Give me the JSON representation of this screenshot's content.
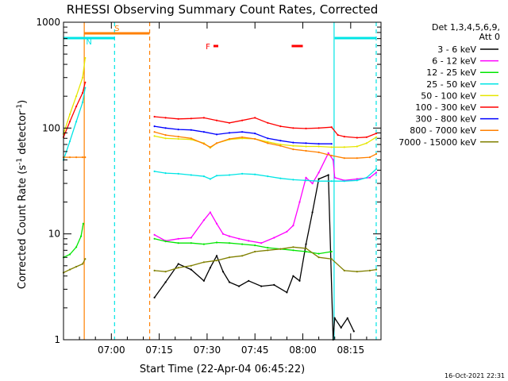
{
  "chart_data": {
    "type": "line",
    "title": "RHESSI Observing Summary Count Rates, Corrected",
    "xlabel": "Start Time (22-Apr-04 06:45:22)",
    "ylabel": "Corrected Count Rate (s",
    "ylabel_sup": "-1",
    "ylabel_tail": " detector",
    "ylabel_sup2": "-1",
    "ylabel_end": ")",
    "x_range_minutes": [
      0,
      99.5
    ],
    "ylim": [
      1,
      1000
    ],
    "yscale": "log",
    "x_ticks": [
      {
        "t": 15,
        "label": "07:00"
      },
      {
        "t": 30,
        "label": "07:15"
      },
      {
        "t": 45,
        "label": "07:30"
      },
      {
        "t": 60,
        "label": "07:45"
      },
      {
        "t": 75,
        "label": "08:00"
      },
      {
        "t": 90,
        "label": "08:15"
      }
    ],
    "y_ticks": [
      {
        "v": 1,
        "label": "1"
      },
      {
        "v": 10,
        "label": "10"
      },
      {
        "v": 100,
        "label": "100"
      },
      {
        "v": 1000,
        "label": "1000"
      }
    ],
    "legend_header": [
      "Det 1,3,4,5,6,9,",
      "Att 0"
    ],
    "legend_placement": "right",
    "timestamp": "16-Oct-2021 22:31",
    "flags": [
      {
        "label": "S",
        "start": 6.5,
        "end": 27.0,
        "color": "#ff8000",
        "level": 0.965
      },
      {
        "label": "N",
        "start": 0.0,
        "end": 16.0,
        "color": "#00e5e5",
        "level": 0.95
      },
      {
        "label": "",
        "start": 85.0,
        "end": 98.0,
        "color": "#00e5e5",
        "level": 0.95
      },
      {
        "label": "F",
        "start": 47.0,
        "end": 48.5,
        "color": "#ff0000",
        "level": 0.925
      },
      {
        "label": "",
        "start": 71.5,
        "end": 75.0,
        "color": "#ff0000",
        "level": 0.925
      }
    ],
    "markers": [
      {
        "t": 6.5,
        "color": "#ff8000",
        "style": "solid"
      },
      {
        "t": 16.0,
        "color": "#00e5e5",
        "style": "dashed"
      },
      {
        "t": 27.0,
        "color": "#ff8000",
        "style": "dashed"
      },
      {
        "t": 84.8,
        "color": "#00e5e5",
        "style": "solid"
      },
      {
        "t": 98.0,
        "color": "#00e5e5",
        "style": "dashed"
      }
    ],
    "series": [
      {
        "name": "3 - 6 keV",
        "color": "#000000",
        "x": [
          28.5,
          32,
          36,
          40,
          44,
          46,
          48,
          50,
          52,
          55,
          58,
          62,
          66,
          70,
          72,
          74,
          76,
          78,
          80,
          83,
          84.5,
          85,
          87,
          89,
          91
        ],
        "y": [
          2.5,
          3.5,
          5.2,
          4.6,
          3.6,
          4.8,
          6.2,
          4.4,
          3.5,
          3.2,
          3.6,
          3.2,
          3.3,
          2.8,
          4.0,
          3.6,
          8.0,
          16.0,
          33.0,
          36.0,
          1.0,
          1.6,
          1.3,
          1.6,
          1.2
        ]
      },
      {
        "name": "6 - 12 keV",
        "color": "#ff00ff",
        "x": [
          28.5,
          32,
          36,
          40,
          44,
          46,
          48,
          50,
          52,
          55,
          58,
          62,
          66,
          70,
          72,
          74,
          76,
          78,
          80,
          83,
          84.5,
          85,
          88,
          92,
          96,
          98
        ],
        "y": [
          9.8,
          8.6,
          9.0,
          9.2,
          13.5,
          16.0,
          12.5,
          10.0,
          9.5,
          9.0,
          8.6,
          8.2,
          9.2,
          10.5,
          12.0,
          20.0,
          34.0,
          30.0,
          38.0,
          58.0,
          50.0,
          34.0,
          32.0,
          33.0,
          34.0,
          38.0
        ]
      },
      {
        "name": "12 - 25 keV",
        "color": "#00e600",
        "x": [
          0,
          2,
          4,
          5.5,
          6.2,
          28.5,
          32,
          36,
          40,
          44,
          48,
          52,
          56,
          60,
          64,
          68,
          72,
          76,
          80,
          84
        ],
        "y": [
          6.0,
          6.4,
          7.5,
          9.5,
          12.5,
          9.0,
          8.5,
          8.2,
          8.2,
          8.0,
          8.3,
          8.2,
          8.0,
          7.8,
          7.4,
          7.2,
          7.0,
          6.8,
          6.5,
          6.8
        ]
      },
      {
        "name": "25 - 50 keV",
        "color": "#00e5e5",
        "x": [
          0,
          2,
          4,
          6,
          6.8,
          28.5,
          32,
          36,
          40,
          44,
          46,
          48,
          52,
          56,
          60,
          64,
          68,
          72,
          76,
          80,
          84,
          88,
          92,
          95,
          98
        ],
        "y": [
          50,
          75,
          115,
          175,
          240,
          39,
          37.5,
          37,
          36,
          35,
          33,
          35.5,
          36,
          37,
          36.5,
          35,
          33.5,
          32.5,
          32,
          31.5,
          31.5,
          31.5,
          32,
          34,
          41
        ]
      },
      {
        "name": "50 - 100 keV",
        "color": "#e6e600",
        "x": [
          0,
          2,
          4,
          6,
          6.8,
          28.5,
          32,
          36,
          40,
          44,
          46,
          48,
          52,
          56,
          60,
          64,
          68,
          72,
          76,
          80,
          84,
          88,
          92,
          95,
          98
        ],
        "y": [
          88,
          135,
          200,
          300,
          460,
          84,
          80,
          79,
          78,
          72,
          65,
          72,
          78,
          80,
          79,
          74,
          70,
          68,
          67,
          67,
          66,
          66,
          67,
          72,
          82
        ]
      },
      {
        "name": "100 - 300 keV",
        "color": "#ff0000",
        "x": [
          0,
          2,
          4,
          6,
          6.8,
          28.5,
          32,
          36,
          40,
          44,
          48,
          52,
          56,
          60,
          64,
          68,
          72,
          76,
          80,
          84,
          86,
          88,
          92,
          95,
          98
        ],
        "y": [
          82,
          115,
          160,
          215,
          270,
          128,
          125,
          122,
          123,
          125,
          118,
          112,
          118,
          125,
          112,
          104,
          100,
          99,
          100,
          102,
          86,
          83,
          81,
          82,
          89
        ]
      },
      {
        "name": "300 - 800 keV",
        "color": "#0000ff",
        "x": [
          28.5,
          32,
          36,
          40,
          44,
          48,
          52,
          56,
          60,
          64,
          68,
          72,
          76,
          80,
          84
        ],
        "y": [
          104,
          100,
          97,
          96,
          92,
          87,
          90,
          92,
          89,
          80,
          76,
          73,
          72,
          71,
          71
        ]
      },
      {
        "name": "800 - 7000 keV",
        "color": "#ff8000",
        "x": [
          0,
          2,
          4,
          6,
          6.8,
          28.5,
          32,
          36,
          40,
          44,
          46,
          48,
          52,
          56,
          60,
          64,
          68,
          72,
          76,
          80,
          84,
          88,
          92,
          96,
          98
        ],
        "y": [
          53,
          53,
          53,
          53,
          53,
          92,
          86,
          83,
          80,
          71,
          66,
          72,
          79,
          82,
          79,
          72,
          68,
          63,
          61,
          59,
          55,
          52,
          52,
          53,
          57
        ]
      },
      {
        "name": "7000 - 15000 keV",
        "color": "#808000",
        "x": [
          0,
          2,
          4,
          6,
          6.8,
          28.5,
          32,
          36,
          40,
          44,
          48,
          52,
          56,
          60,
          64,
          68,
          72,
          76,
          80,
          84,
          88,
          92,
          96,
          98
        ],
        "y": [
          4.3,
          4.6,
          4.9,
          5.2,
          5.8,
          4.5,
          4.4,
          4.8,
          5.0,
          5.4,
          5.6,
          6.0,
          6.2,
          6.8,
          7.0,
          7.2,
          7.5,
          7.3,
          6.0,
          5.8,
          4.5,
          4.4,
          4.5,
          4.6
        ]
      }
    ]
  }
}
